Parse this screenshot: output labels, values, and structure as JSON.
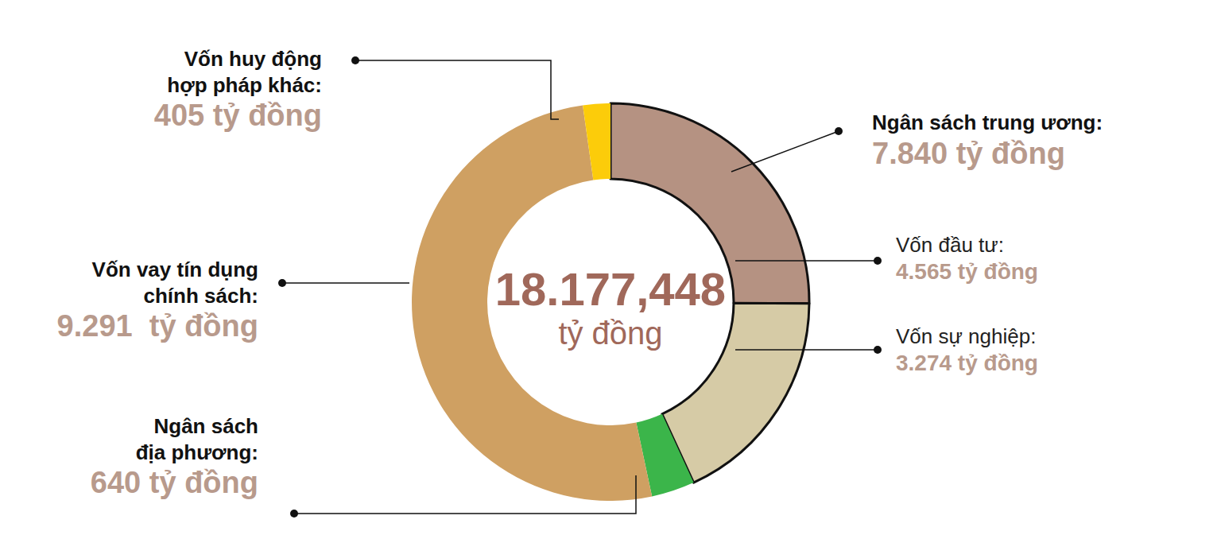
{
  "chart_data": {
    "type": "pie",
    "categories": [
      "Vốn đầu tư:",
      "Vốn sự nghiệp:",
      "Ngân sách địa phương:",
      "Vốn vay tín dụng chính sách:",
      "Vốn huy động hợp pháp khác:"
    ],
    "values": [
      4565,
      3274,
      640,
      9291,
      405
    ],
    "value_labels": [
      "4.565 tỷ đồng",
      "3.274 tỷ đồng",
      "640 tỷ đồng",
      "9.291  tỷ đồng",
      "405 tỷ đồng"
    ],
    "colors": [
      "#b59282",
      "#d6cba6",
      "#3bb54a",
      "#cfa062",
      "#fccc0a"
    ],
    "groups": [
      {
        "name": "Ngân sách trung ương:",
        "categories": [
          "Vốn đầu tư:",
          "Vốn sự nghiệp:"
        ],
        "value": 7840,
        "value_label": "7.840 tỷ đồng"
      }
    ],
    "total": {
      "value": 18177.448,
      "label": "18.177,448",
      "unit": "tỷ đồng"
    }
  }
}
